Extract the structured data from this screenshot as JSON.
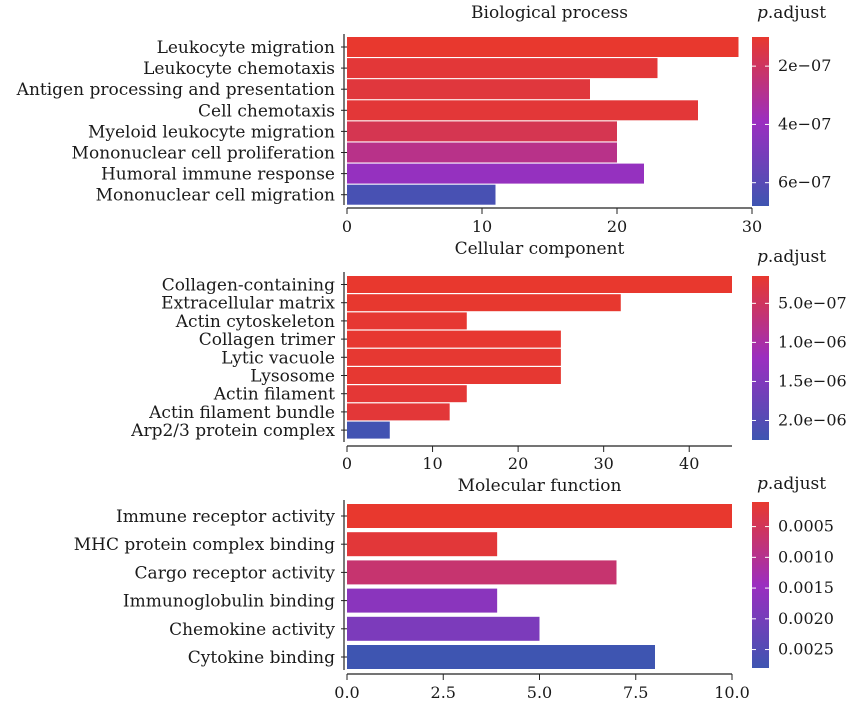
{
  "colors": {
    "high": "#e8382e",
    "mid": "#9b2ec0",
    "low": "#3e55b1",
    "axis": "#222222"
  },
  "chart_data": [
    {
      "type": "bar",
      "orientation": "horizontal",
      "title": "Biological process",
      "categories": [
        "Leukocyte migration",
        "Leukocyte chemotaxis",
        "Antigen processing and presentation",
        "Cell chemotaxis",
        "Myeloid leukocyte migration",
        "Mononuclear cell proliferation",
        "Humoral immune response",
        "Mononuclear cell migration"
      ],
      "values": [
        29,
        23,
        18,
        26,
        20,
        20,
        22,
        11
      ],
      "p_adjust": [
        1e-07,
        1.2e-07,
        1.3e-07,
        1.2e-07,
        1.7e-07,
        2.8e-07,
        4.1e-07,
        6.5e-07
      ],
      "xlim": [
        0,
        30
      ],
      "xticks": [
        "0",
        "10",
        "20",
        "30"
      ],
      "legend": {
        "title_italic": "p",
        "title_rest": ".adjust",
        "position": "right",
        "range": [
          1e-07,
          6.8e-07
        ],
        "ticks": [
          {
            "value": 2e-07,
            "label": "2e−07"
          },
          {
            "value": 4e-07,
            "label": "4e−07"
          },
          {
            "value": 6e-07,
            "label": "6e−07"
          }
        ]
      }
    },
    {
      "type": "bar",
      "orientation": "horizontal",
      "title": "Cellular component",
      "categories": [
        "Collagen-containing",
        "Extracellular matrix",
        "Actin cytoskeleton",
        "Collagen trimer",
        "Lytic vacuole",
        "Lysosome",
        "Actin filament",
        "Actin filament bundle",
        "Arp2/3 protein complex"
      ],
      "values": [
        45,
        32,
        14,
        25,
        25,
        25,
        14,
        12,
        5
      ],
      "p_adjust": [
        1.5e-07,
        1.6e-07,
        1.8e-07,
        1.7e-07,
        1.8e-07,
        1.8e-07,
        2.1e-07,
        2.2e-07,
        2.2e-06
      ],
      "xlim": [
        0,
        45
      ],
      "xticks": [
        "0",
        "10",
        "20",
        "30",
        "40"
      ],
      "legend": {
        "title_italic": "p",
        "title_rest": ".adjust",
        "position": "right",
        "range": [
          1.5e-07,
          2.25e-06
        ],
        "ticks": [
          {
            "value": 5e-07,
            "label": "5.0e−07"
          },
          {
            "value": 1e-06,
            "label": "1.0e−06"
          },
          {
            "value": 1.5e-06,
            "label": "1.5e−06"
          },
          {
            "value": 2e-06,
            "label": "2.0e−06"
          }
        ]
      }
    },
    {
      "type": "bar",
      "orientation": "horizontal",
      "title": "Molecular function",
      "categories": [
        "Immune receptor activity",
        "MHC protein complex binding",
        "Cargo receptor activity",
        "Immunoglobulin binding",
        "Chemokine activity",
        "Cytokine binding"
      ],
      "values": [
        10,
        3.9,
        7,
        3.9,
        5,
        8
      ],
      "p_adjust": [
        0.0001,
        0.0002,
        0.0007,
        0.0017,
        0.0019,
        0.0028
      ],
      "xlim": [
        0,
        10
      ],
      "xticks": [
        "0.0",
        "2.5",
        "5.0",
        "7.5",
        "10.0"
      ],
      "legend": {
        "title_italic": "p",
        "title_rest": ".adjust",
        "position": "right",
        "range": [
          0.0001,
          0.0028
        ],
        "ticks": [
          {
            "value": 0.0005,
            "label": "0.0005"
          },
          {
            "value": 0.001,
            "label": "0.0010"
          },
          {
            "value": 0.0015,
            "label": "0.0015"
          },
          {
            "value": 0.002,
            "label": "0.0020"
          },
          {
            "value": 0.0025,
            "label": "0.0025"
          }
        ]
      }
    }
  ]
}
